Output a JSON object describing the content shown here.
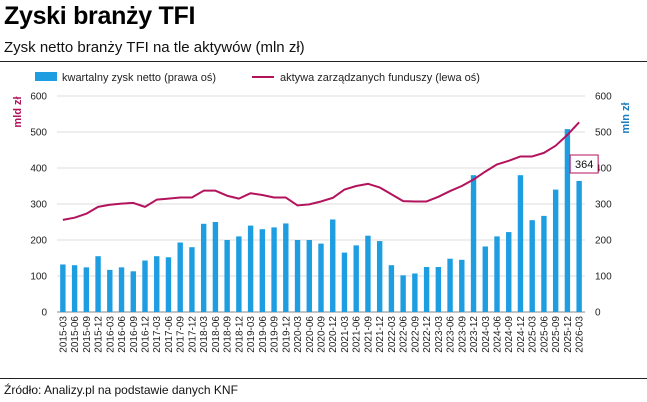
{
  "header": {
    "title": "Zyski branży TFI",
    "subtitle": "Zysk netto branży TFI na tle aktywów (mln zł)"
  },
  "footer": {
    "source": "Źródło: Analizy.pl na podstawie danych KNF"
  },
  "chart_data": {
    "type": "bar+line",
    "categories": [
      "2015-03",
      "2015-06",
      "2015-09",
      "2015-12",
      "2016-03",
      "2016-06",
      "2016-09",
      "2016-12",
      "2017-03",
      "2017-06",
      "2017-09",
      "2017-12",
      "2018-03",
      "2018-06",
      "2018-09",
      "2018-12",
      "2019-03",
      "2019-06",
      "2019-09",
      "2019-12",
      "2020-03",
      "2020-06",
      "2020-09",
      "2020-12",
      "2021-03",
      "2021-06",
      "2021-09",
      "2021-12",
      "2022-03",
      "2022-06",
      "2022-09",
      "2022-12",
      "2023-03",
      "2023-06",
      "2023-09",
      "2023-12",
      "2024-03",
      "2024-06",
      "2024-09",
      "2024-12",
      "2025-03",
      "2025-06",
      "2025-09",
      "2025-12",
      "2026-03"
    ],
    "series": [
      {
        "name": "kwartalny zysk netto (prawa oś)",
        "type": "bar",
        "axis": "right",
        "color": "#1e9ee0",
        "values": [
          132,
          130,
          124,
          155,
          117,
          124,
          113,
          143,
          155,
          152,
          193,
          180,
          245,
          250,
          200,
          210,
          240,
          230,
          235,
          246,
          200,
          200,
          190,
          257,
          165,
          185,
          212,
          197,
          130,
          102,
          107,
          125,
          125,
          148,
          145,
          380,
          182,
          210,
          222,
          380,
          255,
          267,
          340,
          508,
          364
        ]
      },
      {
        "name": "aktywa zarządzanych funduszy (lewa oś)",
        "type": "line",
        "axis": "left",
        "color": "#b3135d",
        "values": [
          256,
          262,
          273,
          292,
          298,
          301,
          303,
          292,
          312,
          315,
          318,
          318,
          337,
          337,
          323,
          315,
          330,
          325,
          318,
          318,
          296,
          299,
          307,
          317,
          340,
          350,
          356,
          346,
          327,
          308,
          307,
          307,
          320,
          336,
          350,
          368,
          390,
          410,
          420,
          432,
          432,
          442,
          462,
          492,
          527
        ]
      }
    ],
    "y_left": {
      "label": "mld zł",
      "min": 0,
      "max": 600,
      "ticks": [
        0,
        100,
        200,
        300,
        400,
        500,
        600
      ]
    },
    "y_right": {
      "label": "mln zł",
      "min": 0,
      "max": 600,
      "ticks": [
        0,
        100,
        200,
        300,
        400,
        500,
        600
      ]
    },
    "annotation": {
      "index": 44,
      "text": "364"
    },
    "grid": true,
    "legend_placement": "top"
  }
}
